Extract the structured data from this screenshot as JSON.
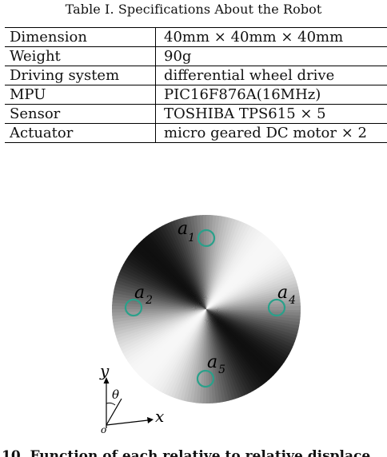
{
  "table": {
    "caption": "Table I. Specifications About the Robot",
    "rows": [
      {
        "label": "Dimension",
        "value": "40mm × 40mm × 40mm"
      },
      {
        "label": "Weight",
        "value": "90g"
      },
      {
        "label": "Driving system",
        "value": "differential wheel drive"
      },
      {
        "label": "MPU",
        "value": "PIC16F876A(16MHz)"
      },
      {
        "label": "Sensor",
        "value": "TOSHIBA TPS615 × 5"
      },
      {
        "label": "Actuator",
        "value": "micro geared DC motor × 2"
      }
    ]
  },
  "figure": {
    "sensor_labels": {
      "a1": {
        "base": "a",
        "sub": "1"
      },
      "a2": {
        "base": "a",
        "sub": "2"
      },
      "a4": {
        "base": "a",
        "sub": "4"
      },
      "a5": {
        "base": "a",
        "sub": "5"
      }
    },
    "axes": {
      "y": "y",
      "x": "x",
      "theta": "θ",
      "origin": "o"
    },
    "sensor_color": "#2aa08a"
  },
  "caption_fragment": "10.   Function of each relative to relative displace"
}
